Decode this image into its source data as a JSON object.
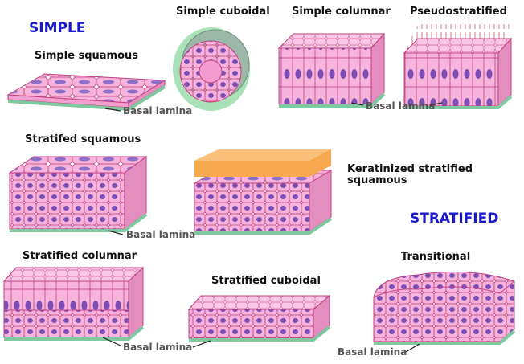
{
  "headings": {
    "simple": "SIMPLE",
    "stratified": "STRATIFIED"
  },
  "tissues": [
    {
      "label": "Simple squamous"
    },
    {
      "label": "Simple cuboidal"
    },
    {
      "label": "Simple columnar"
    },
    {
      "label": "Pseudostratified"
    },
    {
      "label": "Stratifed squamous"
    },
    {
      "label_lines": [
        "Keratinized stratified",
        "squamous"
      ]
    },
    {
      "label": "Stratified columnar"
    },
    {
      "label": "Stratified cuboidal"
    },
    {
      "label": "Transitional"
    }
  ],
  "basal_lamina_labels": [
    "Basal lamina",
    "Basal lamina",
    "Basal lamina",
    "Basal lamina",
    "Basal lamina"
  ]
}
